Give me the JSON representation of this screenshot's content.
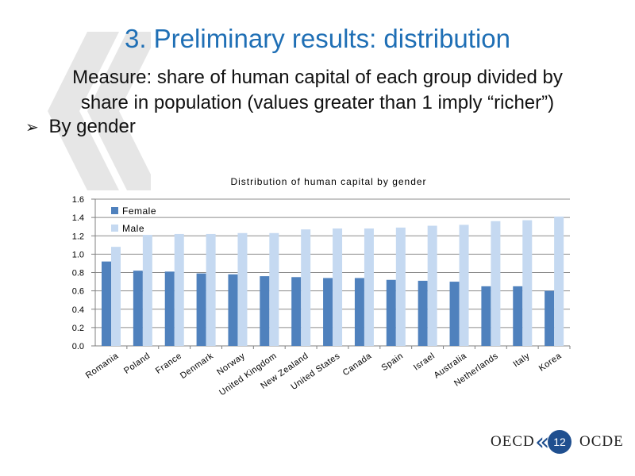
{
  "slide": {
    "title": "3. Preliminary results: distribution",
    "subtitle_line1": "Measure: share of human capital of each group divided by",
    "subtitle_line2": "share in population (values greater than 1 imply “richer”)",
    "bullet": "By gender",
    "bullet_icon": "arrow-bullet-icon",
    "footer_left": "OECD",
    "footer_right": "OCDE",
    "page_number": "12"
  },
  "colors": {
    "title": "#1f6fb5",
    "female": "#4f81bd",
    "male": "#c5d9f1",
    "quote_mark": "#e6e6e6"
  },
  "chart_data": {
    "type": "bar",
    "title": "Distribution of human capital by gender",
    "xlabel": "",
    "ylabel": "",
    "ylim": [
      0,
      1.6
    ],
    "yticks": [
      "0.0",
      "0.2",
      "0.4",
      "0.6",
      "0.8",
      "1.0",
      "1.2",
      "1.4",
      "1.6"
    ],
    "grid": true,
    "legend": "top-left",
    "categories": [
      "Romania",
      "Poland",
      "France",
      "Denmark",
      "Norway",
      "United Kingdom",
      "New Zealand",
      "United States",
      "Canada",
      "Spain",
      "Israel",
      "Australia",
      "Netherlands",
      "Italy",
      "Korea"
    ],
    "series": [
      {
        "name": "Female",
        "values": [
          0.92,
          0.82,
          0.81,
          0.79,
          0.78,
          0.76,
          0.75,
          0.74,
          0.74,
          0.72,
          0.71,
          0.7,
          0.65,
          0.65,
          0.6
        ]
      },
      {
        "name": "Male",
        "values": [
          1.08,
          1.21,
          1.22,
          1.22,
          1.23,
          1.23,
          1.27,
          1.28,
          1.28,
          1.29,
          1.31,
          1.32,
          1.36,
          1.37,
          1.41
        ]
      }
    ]
  }
}
